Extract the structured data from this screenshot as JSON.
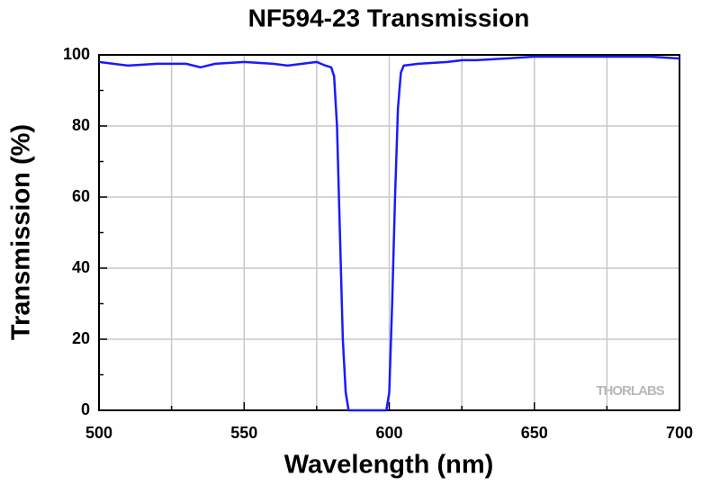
{
  "chart_data": {
    "type": "line",
    "title": "NF594-23 Transmission",
    "x_label": "Wavelength (nm)",
    "y_label": "Transmission (%)",
    "watermark": "THORLABS",
    "x": [
      500,
      505,
      510,
      520,
      530,
      535,
      540,
      550,
      560,
      565,
      570,
      575,
      578,
      580,
      581,
      582,
      583,
      584,
      585,
      586,
      590,
      595,
      599,
      600,
      601,
      602,
      603,
      604,
      605,
      610,
      620,
      625,
      630,
      640,
      650,
      660,
      670,
      680,
      690,
      700
    ],
    "series": [
      {
        "name": "Transmission",
        "color": "#1a1aff",
        "values": [
          98,
          97.5,
          97,
          97.5,
          97.5,
          96.5,
          97.5,
          98,
          97.5,
          97,
          97.5,
          98,
          97,
          96.5,
          94,
          80,
          50,
          20,
          5,
          0,
          0,
          0,
          0,
          5,
          30,
          60,
          85,
          95,
          97,
          97.5,
          98,
          98.5,
          98.5,
          99,
          99.5,
          99.5,
          99.5,
          99.5,
          99.5,
          99
        ]
      }
    ],
    "xlim": [
      500,
      700
    ],
    "ylim": [
      0,
      100
    ],
    "xticks": [
      500,
      550,
      600,
      650,
      700
    ],
    "yticks": [
      0,
      20,
      40,
      60,
      80,
      100
    ],
    "x_minor_ticks": [
      525,
      575,
      625,
      675
    ],
    "y_minor_ticks": [
      10,
      30,
      50,
      70,
      90
    ],
    "grid": true
  }
}
